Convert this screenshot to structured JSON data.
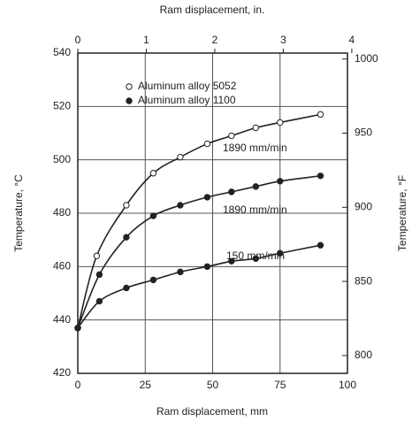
{
  "chart_data": {
    "type": "line",
    "xlabel": "Ram displacement, mm",
    "x2label": "Ram displacement, in.",
    "ylabel": "Temperature, °C",
    "y2label": "Temperature, °F",
    "xlim": [
      0,
      100
    ],
    "xticks": [
      0,
      25,
      50,
      75,
      100
    ],
    "x2lim": [
      0,
      3.937
    ],
    "x2ticks": [
      0,
      1,
      2,
      3,
      4
    ],
    "ylim": [
      420,
      540
    ],
    "yticks": [
      420,
      440,
      460,
      480,
      500,
      520,
      540
    ],
    "y2lim": [
      788,
      1004
    ],
    "y2ticks": [
      800,
      850,
      900,
      950,
      1000
    ],
    "grid": true,
    "legend": [
      {
        "name": "Aluminum alloy 5052",
        "marker": "open"
      },
      {
        "name": "Aluminum alloy 1100",
        "marker": "filled"
      }
    ],
    "series": [
      {
        "label": "1890 mm/min",
        "marker": "open",
        "color": "#222",
        "x": [
          0,
          7,
          18,
          28,
          38,
          48,
          57,
          66,
          75,
          90
        ],
        "values": [
          437,
          464,
          483,
          495,
          501,
          506,
          509,
          512,
          514,
          517
        ]
      },
      {
        "label": "1890 mm/min",
        "marker": "filled",
        "color": "#222",
        "x": [
          0,
          8,
          18,
          28,
          38,
          48,
          57,
          66,
          75,
          90
        ],
        "values": [
          437,
          457,
          471,
          479,
          483,
          486,
          488,
          490,
          492,
          494
        ]
      },
      {
        "label": "150 mm/min",
        "marker": "filled",
        "color": "#222",
        "x": [
          0,
          8,
          18,
          28,
          38,
          48,
          57,
          66,
          75,
          90
        ],
        "values": [
          437,
          447,
          452,
          455,
          458,
          460,
          462,
          463,
          465,
          468
        ]
      }
    ]
  }
}
